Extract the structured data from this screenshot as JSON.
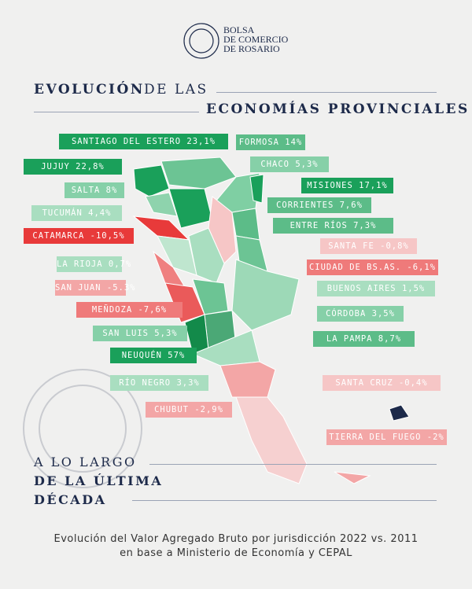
{
  "header": {
    "logo_lines": [
      "BOLSA",
      "DE COMERCIO",
      "DE ROSARIO"
    ],
    "title_line1_bold": "EVOLUCIÓN",
    "title_line1_rest": "DE LAS",
    "title_line2": "ECONOMÍAS PROVINCIALES"
  },
  "labels": [
    "SANTIAGO DEL ESTERO 23,1%",
    "FORMOSA 14%",
    "JUJUY 22,8%",
    "CHACO 5,3%",
    "SALTA 8%",
    "MISIONES 17,1%",
    "TUCUMÁN 4,4%",
    "CORRIENTES 7,6%",
    "CATAMARCA -10,5%",
    "ENTRE RÍOS 7,3%",
    "SANTA FE -0,8%",
    "LA RIOJA 0,7%",
    "CIUDAD DE BS.AS. -6,1%",
    "SAN JUAN -5.3%",
    "BUENOS AIRES 1,5%",
    "MEÑDOZA -7,6%",
    "CÓRDOBA 3,5%",
    "SAN LUIS 5,3%",
    "LA PAMPA 8,7%",
    "NEUQUÉN 57%",
    "RÍO NEGRO 3,3%",
    "SANTA CRUZ -0,4%",
    "CHUBUT -2,9%",
    "TIERRA DEL FUEGO -2%"
  ],
  "period": {
    "line1": "A LO LARGO",
    "line2": "DE LA ÚLTIMA",
    "line3": "DÉCADA"
  },
  "footer": {
    "line1": "Evolución del Valor Agregado Bruto por jurisdicción 2022 vs. 2011",
    "line2": "en base a Ministerio de Economía y CEPAL"
  }
}
